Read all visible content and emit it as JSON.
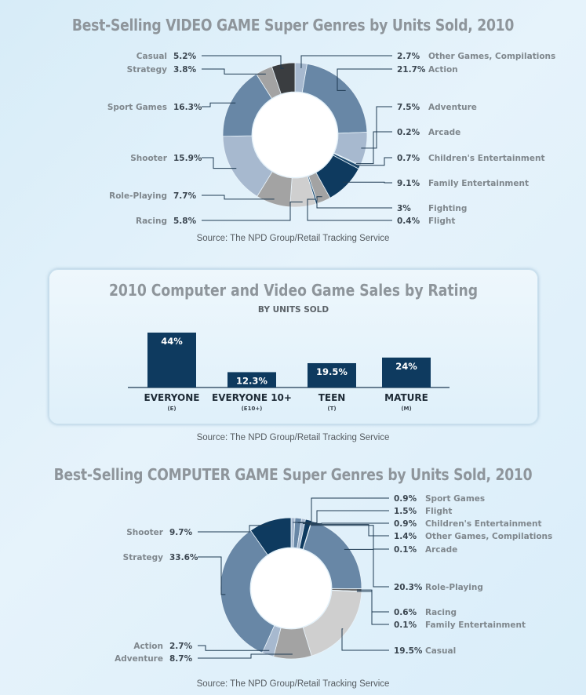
{
  "chart_data": [
    {
      "type": "pie",
      "title": "Best-Selling VIDEO GAME Super Genres by Units Sold, 2010",
      "source": "Source: The NPD Group/Retail Tracking Service",
      "unit": "%",
      "slices": [
        {
          "label": "Other Games, Compilations",
          "value": 2.7,
          "display": "2.7%",
          "color": "#a7b9cf"
        },
        {
          "label": "Action",
          "value": 21.7,
          "display": "21.7%",
          "color": "#6887a6"
        },
        {
          "label": "Adventure",
          "value": 7.5,
          "display": "7.5%",
          "color": "#a7b9cf"
        },
        {
          "label": "Arcade",
          "value": 0.2,
          "display": "0.2%",
          "color": "#6887a6"
        },
        {
          "label": "Children's Entertainment",
          "value": 0.7,
          "display": "0.7%",
          "color": "#1e4a6e"
        },
        {
          "label": "Family Entertainment",
          "value": 9.1,
          "display": "9.1%",
          "color": "#0e3a5f"
        },
        {
          "label": "Fighting",
          "value": 3,
          "display": "3%",
          "color": "#a3a3a3"
        },
        {
          "label": "Flight",
          "value": 0.4,
          "display": "0.4%",
          "color": "#1e4a6e"
        },
        {
          "label": "Racing",
          "value": 5.8,
          "display": "5.8%",
          "color": "#cfcfcf"
        },
        {
          "label": "Role-Playing",
          "value": 7.7,
          "display": "7.7%",
          "color": "#a3a3a3"
        },
        {
          "label": "Shooter",
          "value": 15.9,
          "display": "15.9%",
          "color": "#a7b9cf"
        },
        {
          "label": "Sport Games",
          "value": 16.3,
          "display": "16.3%",
          "color": "#6887a6"
        },
        {
          "label": "Strategy",
          "value": 3.8,
          "display": "3.8%",
          "color": "#a3a3a3"
        },
        {
          "label": "Casual",
          "value": 5.2,
          "display": "5.2%",
          "color": "#3a3d40"
        }
      ]
    },
    {
      "type": "bar",
      "title": "2010 Computer and Video Game Sales by Rating",
      "subtitle": "BY UNITS SOLD",
      "source": "Source: The NPD Group/Retail Tracking Service",
      "categories": [
        "EVERYONE",
        "EVERYONE 10+",
        "TEEN",
        "MATURE"
      ],
      "sublabels": [
        "(E)",
        "(E10+)",
        "(T)",
        "(M)"
      ],
      "values": [
        44,
        12.3,
        19.5,
        24
      ],
      "value_labels": [
        "44%",
        "12.3%",
        "19.5%",
        "24%"
      ],
      "color": "#0e3a5f"
    },
    {
      "type": "pie",
      "title": "Best-Selling COMPUTER GAME Super Genres by Units Sold, 2010",
      "source": "Source: The NPD Group/Retail Tracking Service",
      "unit": "%",
      "slices": [
        {
          "label": "Sport Games",
          "value": 0.9,
          "display": "0.9%",
          "color": "#a7b9cf"
        },
        {
          "label": "Flight",
          "value": 1.5,
          "display": "1.5%",
          "color": "#6887a6"
        },
        {
          "label": "Children's Entertainment",
          "value": 0.9,
          "display": "0.9%",
          "color": "#a7b9cf"
        },
        {
          "label": "Other Games, Compilations",
          "value": 1.4,
          "display": "1.4%",
          "color": "#0e3a5f"
        },
        {
          "label": "Arcade",
          "value": 0.1,
          "display": "0.1%",
          "color": "#a7b9cf"
        },
        {
          "label": "Role-Playing",
          "value": 20.3,
          "display": "20.3%",
          "color": "#6887a6"
        },
        {
          "label": "Racing",
          "value": 0.6,
          "display": "0.6%",
          "color": "#6e6e6e"
        },
        {
          "label": "Family Entertainment",
          "value": 0.1,
          "display": "0.1%",
          "color": "#0e3a5f"
        },
        {
          "label": "Casual",
          "value": 19.5,
          "display": "19.5%",
          "color": "#cfcfcf"
        },
        {
          "label": "Adventure",
          "value": 8.7,
          "display": "8.7%",
          "color": "#a3a3a3"
        },
        {
          "label": "Action",
          "value": 2.7,
          "display": "2.7%",
          "color": "#a7b9cf"
        },
        {
          "label": "Strategy",
          "value": 33.6,
          "display": "33.6%",
          "color": "#6887a6"
        },
        {
          "label": "Shooter",
          "value": 9.7,
          "display": "9.7%",
          "color": "#0e3a5f"
        }
      ]
    }
  ]
}
